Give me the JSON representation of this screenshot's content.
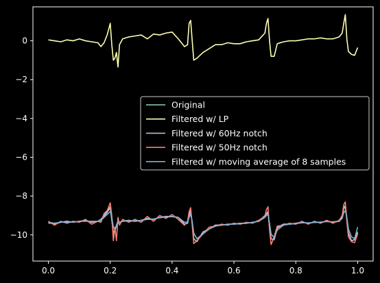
{
  "chart_data": {
    "type": "line",
    "title": "",
    "xlabel": "",
    "ylabel": "",
    "xlim": [
      -0.05,
      1.05
    ],
    "ylim": [
      -11.35,
      1.75
    ],
    "xticks": [
      "0.0",
      "0.2",
      "0.4",
      "0.6",
      "0.8",
      "1.0"
    ],
    "xtick_values": [
      0.0,
      0.2,
      0.4,
      0.6,
      0.8,
      1.0
    ],
    "yticks": [
      "0",
      "−2",
      "−4",
      "−6",
      "−8",
      "−10"
    ],
    "ytick_values": [
      0,
      -2,
      -4,
      -6,
      -8,
      -10
    ],
    "grid": false,
    "background": "#000000",
    "legend_placement": "center-right",
    "x": [
      0.0,
      0.02,
      0.04,
      0.06,
      0.08,
      0.1,
      0.12,
      0.14,
      0.16,
      0.17,
      0.18,
      0.19,
      0.2,
      0.205,
      0.21,
      0.215,
      0.22,
      0.225,
      0.23,
      0.24,
      0.26,
      0.28,
      0.3,
      0.32,
      0.34,
      0.36,
      0.38,
      0.4,
      0.42,
      0.44,
      0.45,
      0.455,
      0.46,
      0.465,
      0.47,
      0.48,
      0.5,
      0.52,
      0.54,
      0.56,
      0.58,
      0.6,
      0.62,
      0.64,
      0.66,
      0.68,
      0.7,
      0.705,
      0.71,
      0.715,
      0.72,
      0.73,
      0.74,
      0.76,
      0.78,
      0.8,
      0.82,
      0.84,
      0.86,
      0.88,
      0.9,
      0.92,
      0.94,
      0.95,
      0.955,
      0.96,
      0.965,
      0.97,
      0.98,
      0.99,
      1.0
    ],
    "series": [
      {
        "name": "Original",
        "color": "#8dd3c7",
        "values": [
          -9.35,
          -9.4,
          -9.35,
          -9.3,
          -9.35,
          -9.3,
          -9.25,
          -9.35,
          -9.3,
          -9.2,
          -9.0,
          -8.8,
          -8.55,
          -9.2,
          -9.9,
          -9.8,
          -9.5,
          -9.3,
          -9.35,
          -9.3,
          -9.25,
          -9.3,
          -9.25,
          -9.15,
          -9.2,
          -9.1,
          -9.05,
          -9.05,
          -9.1,
          -9.45,
          -9.4,
          -8.95,
          -8.75,
          -9.4,
          -10.2,
          -10.35,
          -9.85,
          -9.7,
          -9.5,
          -9.5,
          -9.45,
          -9.45,
          -9.4,
          -9.4,
          -9.35,
          -9.3,
          -9.0,
          -8.9,
          -8.8,
          -9.6,
          -10.2,
          -10.25,
          -9.6,
          -9.45,
          -9.45,
          -9.4,
          -9.35,
          -9.4,
          -9.35,
          -9.35,
          -9.3,
          -9.35,
          -9.3,
          -9.0,
          -8.6,
          -8.5,
          -9.2,
          -9.9,
          -10.3,
          -10.25,
          -9.85
        ]
      },
      {
        "name": "Filtered w/ LP",
        "color": "#ffffb3",
        "values": [
          0.05,
          0.0,
          -0.05,
          0.05,
          0.0,
          0.1,
          0.0,
          -0.05,
          -0.1,
          -0.3,
          -0.1,
          0.3,
          0.9,
          -0.2,
          -1.0,
          -0.9,
          -0.6,
          -1.35,
          -0.2,
          0.1,
          0.2,
          0.25,
          0.3,
          0.1,
          0.35,
          0.3,
          0.4,
          0.45,
          0.1,
          -0.3,
          -0.2,
          0.9,
          1.05,
          0.0,
          -1.0,
          -0.9,
          -0.6,
          -0.4,
          -0.2,
          -0.2,
          -0.1,
          -0.15,
          -0.15,
          -0.05,
          0.0,
          0.05,
          0.4,
          0.9,
          1.15,
          0.0,
          -0.8,
          -0.8,
          -0.15,
          -0.05,
          0.0,
          0.0,
          0.05,
          0.1,
          0.1,
          0.15,
          0.1,
          0.1,
          0.2,
          0.4,
          0.9,
          1.35,
          0.1,
          -0.55,
          -0.7,
          -0.75,
          -0.35
        ]
      },
      {
        "name": "Filtered w/ 60Hz notch",
        "color": "#bebada",
        "values": [
          -9.35,
          -9.45,
          -9.35,
          -9.3,
          -9.35,
          -9.3,
          -9.25,
          -9.35,
          -9.3,
          -9.25,
          -9.05,
          -8.85,
          -8.6,
          -9.25,
          -9.9,
          -9.8,
          -9.55,
          -9.35,
          -9.35,
          -9.3,
          -9.25,
          -9.3,
          -9.25,
          -9.2,
          -9.2,
          -9.1,
          -9.05,
          -9.05,
          -9.1,
          -9.45,
          -9.4,
          -9.0,
          -8.8,
          -9.4,
          -10.2,
          -10.35,
          -9.85,
          -9.7,
          -9.5,
          -9.5,
          -9.45,
          -9.45,
          -9.4,
          -9.4,
          -9.35,
          -9.3,
          -9.05,
          -8.95,
          -8.85,
          -9.6,
          -10.2,
          -10.25,
          -9.65,
          -9.45,
          -9.45,
          -9.4,
          -9.35,
          -9.4,
          -9.35,
          -9.35,
          -9.3,
          -9.35,
          -9.3,
          -9.05,
          -8.65,
          -8.55,
          -9.2,
          -9.9,
          -10.3,
          -10.25,
          -9.9
        ]
      },
      {
        "name": "Filtered w/ 50Hz notch",
        "color": "#fb8072",
        "values": [
          -9.3,
          -9.5,
          -9.3,
          -9.4,
          -9.3,
          -9.35,
          -9.2,
          -9.45,
          -9.3,
          -9.35,
          -8.9,
          -8.75,
          -8.35,
          -9.0,
          -10.3,
          -9.6,
          -10.3,
          -9.1,
          -9.5,
          -9.2,
          -9.35,
          -9.2,
          -9.35,
          -9.05,
          -9.3,
          -9.0,
          -9.15,
          -8.95,
          -9.2,
          -9.5,
          -9.3,
          -8.8,
          -8.6,
          -9.5,
          -10.45,
          -10.3,
          -9.95,
          -9.6,
          -9.55,
          -9.45,
          -9.5,
          -9.4,
          -9.45,
          -9.35,
          -9.4,
          -9.25,
          -9.05,
          -8.7,
          -8.55,
          -9.75,
          -10.5,
          -10.1,
          -9.55,
          -9.5,
          -9.4,
          -9.45,
          -9.3,
          -9.45,
          -9.3,
          -9.4,
          -9.25,
          -9.4,
          -9.25,
          -9.0,
          -8.45,
          -8.3,
          -9.3,
          -10.1,
          -10.35,
          -10.4,
          -9.95
        ]
      },
      {
        "name": "Filtered w/ moving average of 8 samples",
        "color": "#80b1d3",
        "values": [
          -9.4,
          -9.4,
          -9.35,
          -9.35,
          -9.35,
          -9.3,
          -9.3,
          -9.3,
          -9.3,
          -9.25,
          -9.1,
          -8.95,
          -8.8,
          -9.1,
          -9.6,
          -9.7,
          -9.55,
          -9.4,
          -9.35,
          -9.3,
          -9.28,
          -9.28,
          -9.25,
          -9.2,
          -9.18,
          -9.12,
          -9.08,
          -9.06,
          -9.1,
          -9.35,
          -9.35,
          -9.1,
          -8.95,
          -9.3,
          -9.9,
          -10.2,
          -9.95,
          -9.7,
          -9.55,
          -9.5,
          -9.45,
          -9.45,
          -9.42,
          -9.4,
          -9.36,
          -9.3,
          -9.1,
          -9.0,
          -8.95,
          -9.4,
          -9.95,
          -10.15,
          -9.75,
          -9.5,
          -9.45,
          -9.42,
          -9.38,
          -9.38,
          -9.36,
          -9.34,
          -9.32,
          -9.32,
          -9.3,
          -9.15,
          -8.85,
          -8.75,
          -9.1,
          -9.7,
          -10.1,
          -10.2,
          -9.6
        ]
      }
    ]
  }
}
